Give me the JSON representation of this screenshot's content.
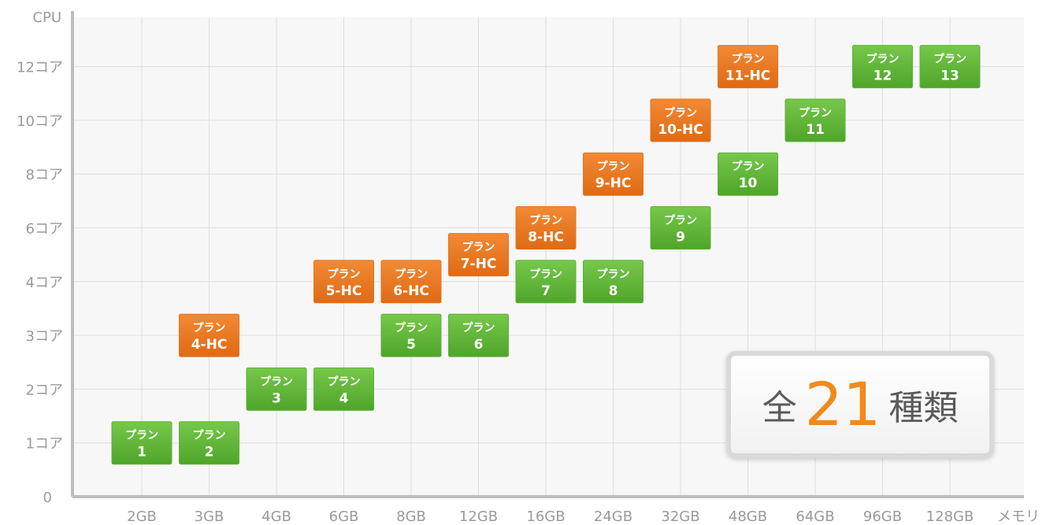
{
  "chart_data": {
    "type": "scatter",
    "title": "",
    "xlabel": "メモリ",
    "ylabel": "CPU",
    "x_categories": [
      "2GB",
      "3GB",
      "4GB",
      "6GB",
      "8GB",
      "12GB",
      "16GB",
      "24GB",
      "32GB",
      "48GB",
      "64GB",
      "96GB",
      "128GB"
    ],
    "y_categories": [
      "0",
      "1コア",
      "2コア",
      "3コア",
      "4コア",
      "6コア",
      "8コア",
      "10コア",
      "12コア"
    ],
    "grid": true,
    "series": [
      {
        "name": "",
        "color": "#5cb335",
        "points": [
          {
            "memory": "2GB",
            "cpu": "1コア",
            "line1": "プラン",
            "line2": "1"
          },
          {
            "memory": "3GB",
            "cpu": "1コア",
            "line1": "プラン",
            "line2": "2"
          },
          {
            "memory": "4GB",
            "cpu": "2コア",
            "line1": "プラン",
            "line2": "3"
          },
          {
            "memory": "6GB",
            "cpu": "2コア",
            "line1": "プラン",
            "line2": "4"
          },
          {
            "memory": "8GB",
            "cpu": "3コア",
            "line1": "プラン",
            "line2": "5"
          },
          {
            "memory": "12GB",
            "cpu": "3コア",
            "line1": "プラン",
            "line2": "6"
          },
          {
            "memory": "16GB",
            "cpu": "4コア",
            "line1": "プラン",
            "line2": "7"
          },
          {
            "memory": "24GB",
            "cpu": "4コア",
            "line1": "プラン",
            "line2": "8"
          },
          {
            "memory": "32GB",
            "cpu": "6コア",
            "line1": "プラン",
            "line2": "9"
          },
          {
            "memory": "48GB",
            "cpu": "8コア",
            "line1": "プラン",
            "line2": "10"
          },
          {
            "memory": "64GB",
            "cpu": "10コア",
            "line1": "プラン",
            "line2": "11"
          },
          {
            "memory": "96GB",
            "cpu": "12コア",
            "line1": "プラン",
            "line2": "12"
          },
          {
            "memory": "128GB",
            "cpu": "12コア",
            "line1": "プラン",
            "line2": "13"
          }
        ]
      },
      {
        "name": "",
        "color": "#e8741f",
        "points": [
          {
            "memory": "3GB",
            "cpu": "3コア",
            "line1": "プラン",
            "line2": "4-HC"
          },
          {
            "memory": "6GB",
            "cpu": "4コア",
            "line1": "プラン",
            "line2": "5-HC"
          },
          {
            "memory": "8GB",
            "cpu": "4コア",
            "line1": "プラン",
            "line2": "6-HC"
          },
          {
            "memory": "12GB",
            "cpu": "4.5",
            "line1": "プラン",
            "line2": "7-HC"
          },
          {
            "memory": "16GB",
            "cpu": "5",
            "line1": "プラン",
            "line2": "8-HC"
          },
          {
            "memory": "24GB",
            "cpu": "6",
            "line1": "プラン",
            "line2": "9-HC"
          },
          {
            "memory": "32GB",
            "cpu": "7",
            "line1": "プラン",
            "line2": "10-HC"
          },
          {
            "memory": "48GB",
            "cpu": "8",
            "line1": "プラン",
            "line2": "11-HC"
          }
        ]
      }
    ]
  },
  "summary": {
    "prefix": "全",
    "count": "21",
    "suffix": "種類"
  }
}
